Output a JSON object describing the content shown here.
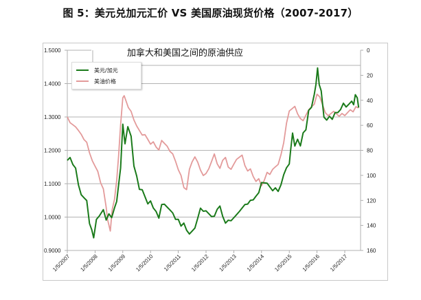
{
  "page": {
    "title": "图 5：美元兑加元汇价 VS 美国原油现货价格（2007-2017）"
  },
  "colors": {
    "usdcad": "#1a7a1a",
    "oil": "#e39a9a",
    "grid": "#9a9a9a",
    "frame": "#c8c8c8"
  },
  "chart_data": {
    "type": "line",
    "title": "加拿大和美国之间的原油供应",
    "xlabel": "",
    "ylabel_left": "美元/加元",
    "ylabel_right": "美油价格 (inverted)",
    "x_tick_labels": [
      "1/5/2007",
      "1/5/2008",
      "1/5/2009",
      "1/5/2010",
      "1/5/2011",
      "1/5/2012",
      "1/5/2013",
      "1/5/2014",
      "1/5/2015",
      "1/5/2016",
      "1/5/2017"
    ],
    "y_left_ticks": [
      "1.5000",
      "1.4000",
      "1.3000",
      "1.2000",
      "1.1000",
      "1.0000",
      "0.9000"
    ],
    "y_left_range": [
      0.9,
      1.5
    ],
    "y_right_ticks": [
      "0",
      "20",
      "40",
      "60",
      "80",
      "100",
      "120",
      "140",
      "160"
    ],
    "y_right_range": [
      0,
      160
    ],
    "y_right_inverted": true,
    "grid": "horizontal",
    "legend_position": "top-left",
    "legend": [
      "美元/加元",
      "美油价格"
    ],
    "series": [
      {
        "name": "美元/加元",
        "axis": "left",
        "x": [
          2007.0,
          2007.1,
          2007.2,
          2007.3,
          2007.4,
          2007.5,
          2007.6,
          2007.7,
          2007.8,
          2007.88,
          2007.95,
          2008.05,
          2008.15,
          2008.3,
          2008.4,
          2008.5,
          2008.6,
          2008.7,
          2008.78,
          2008.85,
          2008.92,
          2009.0,
          2009.08,
          2009.18,
          2009.3,
          2009.4,
          2009.5,
          2009.6,
          2009.7,
          2009.8,
          2009.9,
          2010.0,
          2010.1,
          2010.2,
          2010.3,
          2010.4,
          2010.5,
          2010.6,
          2010.7,
          2010.8,
          2010.9,
          2011.0,
          2011.1,
          2011.2,
          2011.3,
          2011.4,
          2011.5,
          2011.6,
          2011.7,
          2011.8,
          2011.9,
          2012.0,
          2012.1,
          2012.2,
          2012.3,
          2012.4,
          2012.5,
          2012.6,
          2012.7,
          2012.8,
          2012.9,
          2013.0,
          2013.1,
          2013.2,
          2013.3,
          2013.4,
          2013.5,
          2013.6,
          2013.7,
          2013.8,
          2013.9,
          2014.0,
          2014.1,
          2014.2,
          2014.3,
          2014.4,
          2014.5,
          2014.6,
          2014.7,
          2014.8,
          2014.9,
          2015.0,
          2015.05,
          2015.12,
          2015.2,
          2015.3,
          2015.4,
          2015.5,
          2015.6,
          2015.7,
          2015.8,
          2015.9,
          2015.96,
          2016.02,
          2016.08,
          2016.15,
          2016.25,
          2016.35,
          2016.45,
          2016.55,
          2016.65,
          2016.75,
          2016.85,
          2016.95,
          2017.05,
          2017.15,
          2017.25,
          2017.32,
          2017.38,
          2017.45,
          2017.5
        ],
        "values": [
          1.17,
          1.18,
          1.16,
          1.15,
          1.1,
          1.07,
          1.06,
          1.05,
          0.98,
          0.96,
          0.935,
          0.99,
          1.0,
          1.02,
          0.99,
          1.01,
          1.0,
          1.03,
          1.05,
          1.1,
          1.15,
          1.28,
          1.22,
          1.27,
          1.24,
          1.15,
          1.12,
          1.08,
          1.08,
          1.06,
          1.04,
          1.05,
          1.03,
          1.02,
          1.0,
          1.04,
          1.04,
          1.03,
          1.02,
          1.01,
          0.99,
          0.99,
          0.97,
          0.98,
          0.96,
          0.95,
          0.96,
          0.97,
          1.0,
          1.03,
          1.02,
          1.02,
          1.01,
          1.0,
          1.0,
          1.02,
          1.03,
          1.0,
          0.98,
          0.99,
          0.99,
          1.0,
          1.01,
          1.02,
          1.03,
          1.04,
          1.04,
          1.05,
          1.05,
          1.06,
          1.07,
          1.1,
          1.1,
          1.1,
          1.09,
          1.08,
          1.09,
          1.08,
          1.1,
          1.13,
          1.15,
          1.16,
          1.2,
          1.25,
          1.21,
          1.23,
          1.21,
          1.25,
          1.26,
          1.32,
          1.33,
          1.37,
          1.4,
          1.45,
          1.4,
          1.38,
          1.3,
          1.29,
          1.3,
          1.29,
          1.31,
          1.31,
          1.32,
          1.34,
          1.33,
          1.34,
          1.35,
          1.34,
          1.37,
          1.36,
          1.33
        ]
      },
      {
        "name": "美油价格",
        "axis": "right",
        "x": [
          2007.0,
          2007.1,
          2007.2,
          2007.3,
          2007.4,
          2007.5,
          2007.6,
          2007.7,
          2007.8,
          2007.9,
          2008.0,
          2008.1,
          2008.2,
          2008.3,
          2008.4,
          2008.45,
          2008.5,
          2008.55,
          2008.62,
          2008.7,
          2008.78,
          2008.85,
          2008.92,
          2009.0,
          2009.05,
          2009.12,
          2009.2,
          2009.3,
          2009.4,
          2009.5,
          2009.6,
          2009.7,
          2009.8,
          2009.9,
          2010.0,
          2010.1,
          2010.2,
          2010.3,
          2010.4,
          2010.5,
          2010.6,
          2010.7,
          2010.8,
          2010.9,
          2011.0,
          2011.1,
          2011.2,
          2011.3,
          2011.4,
          2011.5,
          2011.6,
          2011.7,
          2011.8,
          2011.9,
          2012.0,
          2012.1,
          2012.2,
          2012.3,
          2012.4,
          2012.5,
          2012.6,
          2012.7,
          2012.8,
          2012.9,
          2013.0,
          2013.1,
          2013.2,
          2013.3,
          2013.4,
          2013.5,
          2013.6,
          2013.7,
          2013.8,
          2013.9,
          2014.0,
          2014.1,
          2014.2,
          2014.3,
          2014.4,
          2014.5,
          2014.6,
          2014.7,
          2014.8,
          2014.9,
          2015.0,
          2015.1,
          2015.2,
          2015.3,
          2015.4,
          2015.5,
          2015.6,
          2015.7,
          2015.8,
          2015.9,
          2016.0,
          2016.1,
          2016.2,
          2016.3,
          2016.4,
          2016.5,
          2016.6,
          2016.7,
          2016.8,
          2016.9,
          2017.0,
          2017.1,
          2017.2,
          2017.3,
          2017.4,
          2017.5
        ],
        "values": [
          53,
          58,
          60,
          62,
          65,
          68,
          72,
          74,
          82,
          88,
          92,
          96,
          105,
          110,
          125,
          135,
          140,
          145,
          128,
          120,
          105,
          85,
          60,
          38,
          36,
          40,
          45,
          48,
          55,
          60,
          64,
          68,
          68,
          72,
          76,
          74,
          78,
          80,
          72,
          74,
          76,
          80,
          82,
          88,
          95,
          100,
          110,
          112,
          96,
          90,
          86,
          90,
          96,
          100,
          98,
          94,
          88,
          82,
          90,
          94,
          88,
          86,
          94,
          96,
          92,
          88,
          86,
          84,
          92,
          96,
          94,
          100,
          104,
          102,
          108,
          104,
          98,
          100,
          96,
          94,
          92,
          84,
          74,
          58,
          48,
          46,
          44,
          50,
          54,
          56,
          52,
          48,
          46,
          44,
          36,
          38,
          44,
          50,
          52,
          50,
          48,
          50,
          52,
          50,
          52,
          50,
          48,
          50,
          46,
          47
        ]
      }
    ]
  }
}
